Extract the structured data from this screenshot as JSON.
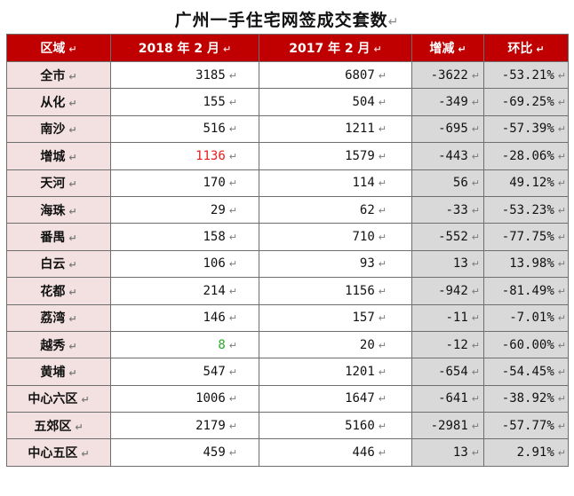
{
  "title": "广州一手住宅网签成交套数",
  "headers": [
    "区域",
    "2018 年 2 月",
    "2017 年 2 月",
    "增减",
    "环比"
  ],
  "rows": [
    {
      "region": "全市",
      "y2018": "3185",
      "y2017": "6807",
      "change": "-3622",
      "ratio": "-53.21%"
    },
    {
      "region": "从化",
      "y2018": "155",
      "y2017": "504",
      "change": "-349",
      "ratio": "-69.25%"
    },
    {
      "region": "南沙",
      "y2018": "516",
      "y2017": "1211",
      "change": "-695",
      "ratio": "-57.39%"
    },
    {
      "region": "增城",
      "y2018": "1136",
      "y2017": "1579",
      "change": "-443",
      "ratio": "-28.06%",
      "highlight": "#e81c1c"
    },
    {
      "region": "天河",
      "y2018": "170",
      "y2017": "114",
      "change": "56",
      "ratio": "49.12%"
    },
    {
      "region": "海珠",
      "y2018": "29",
      "y2017": "62",
      "change": "-33",
      "ratio": "-53.23%"
    },
    {
      "region": "番禺",
      "y2018": "158",
      "y2017": "710",
      "change": "-552",
      "ratio": "-77.75%"
    },
    {
      "region": "白云",
      "y2018": "106",
      "y2017": "93",
      "change": "13",
      "ratio": "13.98%"
    },
    {
      "region": "花都",
      "y2018": "214",
      "y2017": "1156",
      "change": "-942",
      "ratio": "-81.49%"
    },
    {
      "region": "荔湾",
      "y2018": "146",
      "y2017": "157",
      "change": "-11",
      "ratio": "-7.01%"
    },
    {
      "region": "越秀",
      "y2018": "8",
      "y2017": "20",
      "change": "-12",
      "ratio": "-60.00%",
      "highlight": "#2aa82a"
    },
    {
      "region": "黄埔",
      "y2018": "547",
      "y2017": "1201",
      "change": "-654",
      "ratio": "-54.45%"
    },
    {
      "region": "中心六区",
      "y2018": "1006",
      "y2017": "1647",
      "change": "-641",
      "ratio": "-38.92%"
    },
    {
      "region": "五郊区",
      "y2018": "2179",
      "y2017": "5160",
      "change": "-2981",
      "ratio": "-57.77%"
    },
    {
      "region": "中心五区",
      "y2018": "459",
      "y2017": "446",
      "change": "13",
      "ratio": "2.91%"
    }
  ],
  "colors": {
    "header_bg": "#c00000",
    "gray_header_bg": "#d6d6d6",
    "region_bg": "#f3e1e1",
    "gray_cell_bg": "#d9d9d9"
  }
}
